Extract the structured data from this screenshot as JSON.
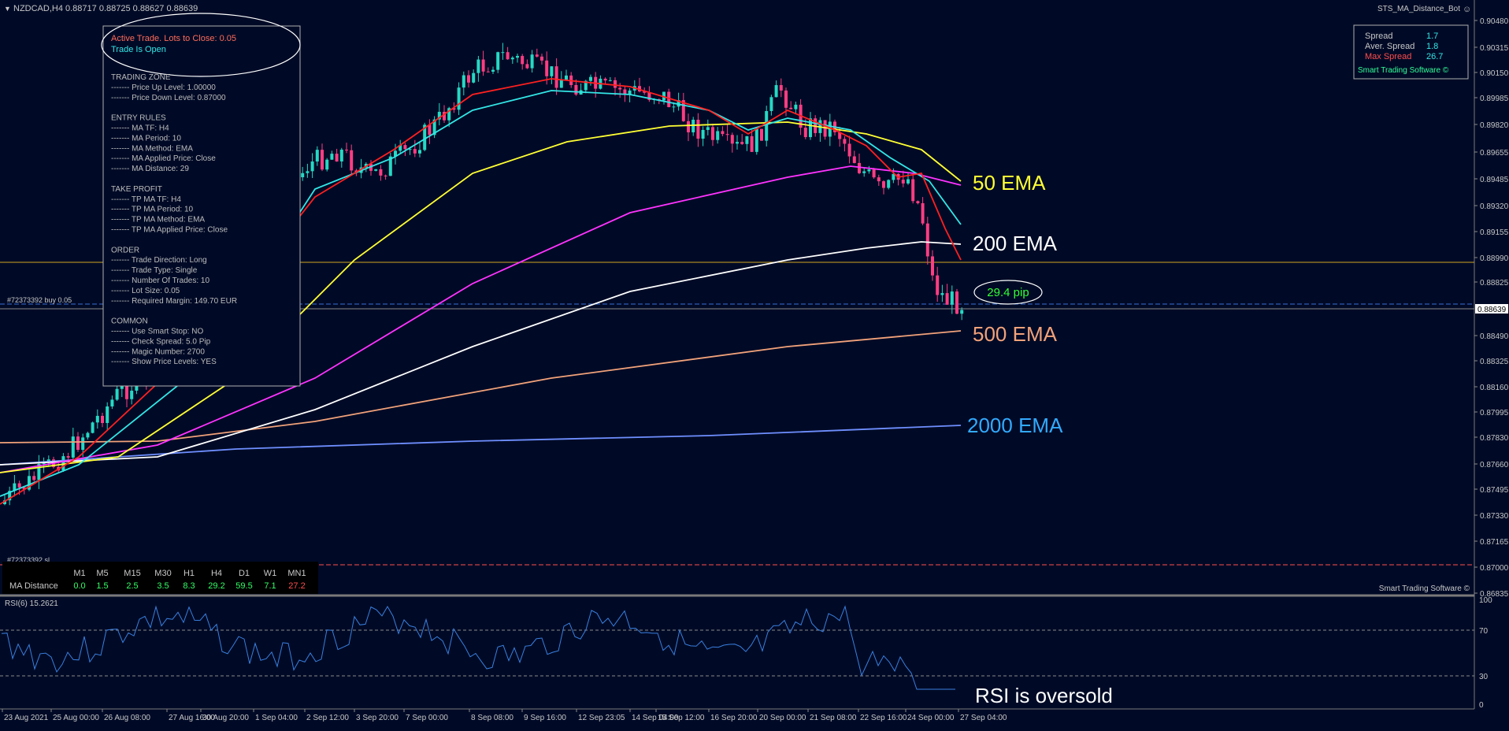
{
  "header": {
    "symbol_line": "NZDCAD,H4  0.88717 0.88725 0.88627 0.88639",
    "ea_name": "STS_MA_Distance_Bot"
  },
  "trade_panel": {
    "status_line1": "Active Trade. Lots to Close: 0.05",
    "status_line2": "Trade Is Open",
    "lines": [
      "TRADING ZONE",
      "------- Price Up Level: 1.00000",
      "------- Price Down Level: 0.87000",
      "",
      "ENTRY RULES",
      "------- MA TF: H4",
      "------- MA Period: 10",
      "------- MA Method: EMA",
      "------- MA Applied Price: Close",
      "------- MA Distance: 29",
      "",
      "TAKE PROFIT",
      "------- TP MA TF: H4",
      "------- TP MA Period: 10",
      "------- TP MA Method: EMA",
      "------- TP MA Applied Price: Close",
      "",
      "ORDER",
      "------- Trade Direction: Long",
      "------- Trade Type: Single",
      "------- Number Of Trades: 10",
      "------- Lot Size: 0.05",
      "------- Required Margin: 149.70 EUR",
      "",
      "COMMON",
      "------- Use Smart Stop: NO",
      "------- Check Spread: 5.0 Pip",
      "------- Magic Number: 2700",
      "------- Show Price Levels: YES"
    ]
  },
  "spread_box": {
    "rows": [
      {
        "label": "Spread",
        "value": "1.7",
        "color": "#c8c8c8"
      },
      {
        "label": "Aver. Spread",
        "value": "1.8",
        "color": "#c8c8c8"
      },
      {
        "label": "Max Spread",
        "value": "26.7",
        "color": "#ff4d4d"
      }
    ],
    "brand": "Smart Trading Software ©"
  },
  "order_label": "#72373392 buy 0.05",
  "sl_label": "#72373392 sl",
  "pip_label": "29.4 pip",
  "current_price": "0.88639",
  "ema_labels": [
    {
      "text": "50 EMA",
      "color": "#ffff33"
    },
    {
      "text": "200 EMA",
      "color": "#ffffff"
    },
    {
      "text": "500 EMA",
      "color": "#f2a27a"
    },
    {
      "text": "2000 EMA",
      "color": "#33aaff"
    }
  ],
  "ma_distance": {
    "row_label": "MA Distance",
    "timeframes": [
      "M1",
      "M5",
      "M15",
      "M30",
      "H1",
      "H4",
      "D1",
      "W1",
      "MN1"
    ],
    "values": [
      "0.0",
      "1.5",
      "2.5",
      "3.5",
      "8.3",
      "29.2",
      "59.5",
      "7.1",
      "27.2"
    ]
  },
  "price_axis": [
    "0.90315",
    "0.90150",
    "0.89985",
    "0.89820",
    "0.89655",
    "0.89485",
    "0.89320",
    "0.89155",
    "0.88990",
    "0.88825",
    "0.88490",
    "0.88325",
    "0.88160",
    "0.87995",
    "0.87830",
    "0.87660",
    "0.87495",
    "0.87330",
    "0.87165",
    "0.87000",
    "0.86835",
    "0.90480"
  ],
  "brand_bottom": "Smart Trading Software ©",
  "rsi": {
    "title": "RSI(6) 15.2621",
    "levels": [
      "100",
      "70",
      "30",
      "0"
    ],
    "note": "RSI is oversold"
  },
  "time_axis": [
    "23 Aug 2021",
    "25 Aug 00:00",
    "26 Aug 08:00",
    "27 Aug 16:00",
    "30 Aug 20:00",
    "1 Sep 04:00",
    "2 Sep 12:00",
    "3 Sep 20:00",
    "7 Sep 00:00",
    "8 Sep 08:00",
    "9 Sep 16:00",
    "12 Sep 23:05",
    "14 Sep 04:00",
    "15 Sep 12:00",
    "16 Sep 20:00",
    "20 Sep 00:00",
    "21 Sep 08:00",
    "22 Sep 16:00",
    "24 Sep 00:00",
    "27 Sep 04:00"
  ],
  "colors": {
    "background": "#000a26",
    "bull": "#26d9c4",
    "bear": "#ff3d82",
    "ema10": "#ff2020",
    "ema20": "#33e6e6",
    "ema50": "#ffff33",
    "ema100": "#ff33ff",
    "ema200": "#ffffff",
    "ema500": "#f2a27a",
    "ema2000": "#6f8fff"
  }
}
